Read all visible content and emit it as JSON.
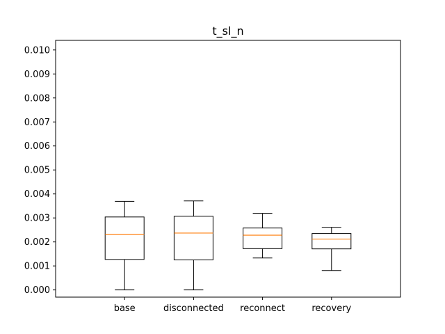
{
  "chart_data": {
    "type": "box",
    "title": "t_sl_n",
    "xlabel": "",
    "ylabel": "",
    "categories": [
      "base",
      "disconnected",
      "reconnect",
      "recovery"
    ],
    "ylim": [
      -0.0003,
      0.0104
    ],
    "yticks": [
      0.0,
      0.001,
      0.002,
      0.003,
      0.004,
      0.005,
      0.006,
      0.007,
      0.008,
      0.009,
      0.01
    ],
    "ytick_labels": [
      "0.000",
      "0.001",
      "0.002",
      "0.003",
      "0.004",
      "0.005",
      "0.006",
      "0.007",
      "0.008",
      "0.009",
      "0.010"
    ],
    "boxes": [
      {
        "label": "base",
        "whisker_low": 0.0,
        "q1": 0.00127,
        "median": 0.00232,
        "q3": 0.00304,
        "whisker_high": 0.00369
      },
      {
        "label": "disconnected",
        "whisker_low": 0.0,
        "q1": 0.00125,
        "median": 0.00237,
        "q3": 0.00307,
        "whisker_high": 0.00371
      },
      {
        "label": "reconnect",
        "whisker_low": 0.00133,
        "q1": 0.00172,
        "median": 0.00228,
        "q3": 0.00258,
        "whisker_high": 0.00319
      },
      {
        "label": "recovery",
        "whisker_low": 0.00081,
        "q1": 0.00171,
        "median": 0.00212,
        "q3": 0.00235,
        "whisker_high": 0.00261
      }
    ],
    "grid": false,
    "legend": "none",
    "colors": {
      "box": "#000000",
      "median": "#ff7f0e",
      "axes": "#000000"
    }
  }
}
